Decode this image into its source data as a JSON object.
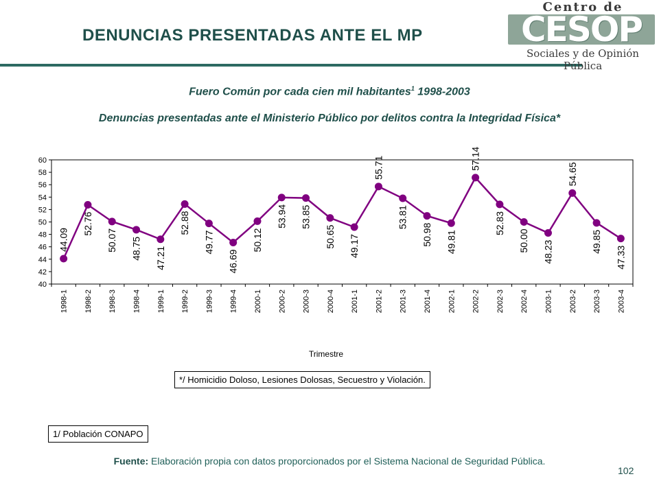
{
  "header": {
    "title": "DENUNCIAS PRESENTADAS ANTE EL MP"
  },
  "logo": {
    "top_text": "Centro de Estudios",
    "mark_text": "CESOP",
    "bottom_text": "Sociales y de Opinión Pública"
  },
  "subtitle": {
    "line1": "Fuero Común por cada cien mil habitantes",
    "line1_footnote": "1",
    "line1_years": " 1998-2003",
    "line2": "Denuncias presentadas ante el Ministerio Público por delitos contra la Integridad Física*"
  },
  "chart_data": {
    "type": "line",
    "title": "",
    "xlabel": "Trimestre",
    "ylabel": "",
    "ylim": [
      40,
      60
    ],
    "yticks": [
      40,
      42,
      44,
      46,
      48,
      50,
      52,
      54,
      56,
      58,
      60
    ],
    "grid": false,
    "categories": [
      "1998-1",
      "1998-2",
      "1998-3",
      "1998-4",
      "1999-1",
      "1999-2",
      "1999-3",
      "1999-4",
      "2000-1",
      "2000-2",
      "2000-3",
      "2000-4",
      "2001-1",
      "2001-2",
      "2001-3",
      "2001-4",
      "2002-1",
      "2002-2",
      "2002-3",
      "2002-4",
      "2003-1",
      "2003-2",
      "2003-3",
      "2003-4"
    ],
    "values": [
      44.09,
      52.76,
      50.07,
      48.75,
      47.21,
      52.88,
      49.77,
      46.69,
      50.12,
      53.94,
      53.85,
      50.65,
      49.17,
      55.71,
      53.81,
      50.98,
      49.81,
      57.14,
      52.83,
      50.0,
      48.23,
      54.65,
      49.85,
      47.33
    ],
    "data_labels": [
      "44.09",
      "52.76",
      "50.07",
      "48.75",
      "47.21",
      "52.88",
      "49.77",
      "46.69",
      "50.12",
      "53.94",
      "53.85",
      "50.65",
      "49.17",
      "55.71",
      "53.81",
      "50.98",
      "49.81",
      "57.14",
      "52.83",
      "50.00",
      "48.23",
      "54.65",
      "49.85",
      "47.33"
    ],
    "label_position": [
      "above",
      "below",
      "below",
      "below",
      "below",
      "below",
      "below",
      "below",
      "below",
      "below",
      "below",
      "below",
      "below",
      "above",
      "below",
      "below",
      "below",
      "above",
      "below",
      "below",
      "below",
      "above",
      "below",
      "below"
    ],
    "series_color": "#800080"
  },
  "notes": {
    "footnote_star": "*/ Homicidio Doloso, Lesiones Dolosas, Secuestro y Violación.",
    "footnote_1": "1/ Población CONAPO"
  },
  "source": {
    "label": "Fuente:",
    "text": " Elaboración propia con datos proporcionados por el Sistema Nacional de Seguridad Pública."
  },
  "page_number": "102",
  "colors": {
    "title": "#1f4f4a",
    "rule": "#2d6a62",
    "line": "#800080"
  }
}
